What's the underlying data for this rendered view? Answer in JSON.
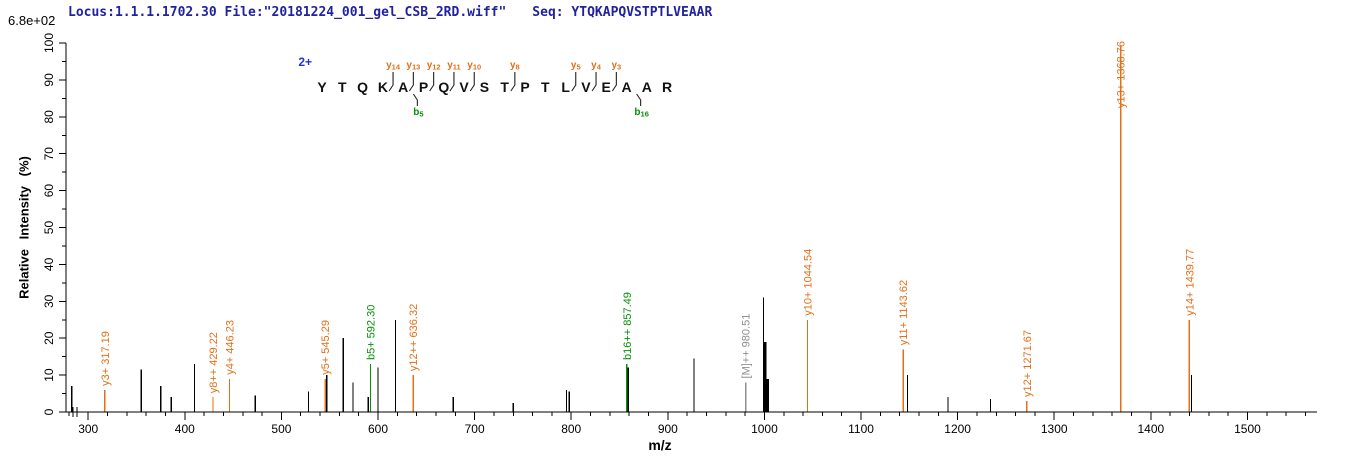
{
  "header": {
    "locus_file": "Locus:1.1.1.1702.30 File:\"20181224_001_gel_CSB_2RD.wiff\"",
    "seq": "Seq: YTQKAPQVSTPTLVEAAR"
  },
  "y_axis_scale": "6.8e+02",
  "colors": {
    "header_text": "#22229e",
    "charge_text": "#2233cc",
    "y_ion": "#e2701a",
    "b_ion": "#0a8f0a",
    "precursor": "#8f8f8f",
    "peak": "#000000",
    "axis": "#000000"
  },
  "chart_data": {
    "type": "bar",
    "subtype": "ms2-fragmentation-spectrum",
    "title": "",
    "xlabel": "m/z",
    "ylabel": "Relative Intensity (%)",
    "xlim": [
      277,
      1572
    ],
    "ylim": [
      0,
      100
    ],
    "x_major_ticks": [
      300,
      400,
      500,
      600,
      700,
      800,
      900,
      1000,
      1100,
      1200,
      1300,
      1400,
      1500
    ],
    "x_minor_tick_step": 20,
    "y_major_ticks": [
      0,
      10,
      20,
      30,
      40,
      50,
      60,
      70,
      80,
      90,
      100
    ],
    "y_minor_tick_step": 5,
    "legend_position": "none",
    "grid": false,
    "peptide": {
      "sequence": "YTQKAPQVSTPTLVEAAR",
      "charge": "2+",
      "y_ions": [
        {
          "name": "y14",
          "boundary": 4
        },
        {
          "name": "y13",
          "boundary": 5
        },
        {
          "name": "y12",
          "boundary": 6
        },
        {
          "name": "y11",
          "boundary": 7
        },
        {
          "name": "y10",
          "boundary": 8
        },
        {
          "name": "y8",
          "boundary": 10
        },
        {
          "name": "y5",
          "boundary": 13
        },
        {
          "name": "y4",
          "boundary": 14
        },
        {
          "name": "y3",
          "boundary": 15
        }
      ],
      "b_ions": [
        {
          "name": "b5",
          "boundary": 5
        },
        {
          "name": "b16",
          "boundary": 16
        }
      ]
    },
    "annotated_peaks": [
      {
        "label": "y3+ 317.19",
        "mz": 317.19,
        "intensity": 6,
        "type": "y"
      },
      {
        "label": "y8++ 429.22",
        "mz": 429.22,
        "intensity": 4,
        "type": "y"
      },
      {
        "label": "y4+ 446.23",
        "mz": 446.23,
        "intensity": 9,
        "type": "y"
      },
      {
        "label": "y5+ 545.29",
        "mz": 545.29,
        "intensity": 9,
        "type": "y"
      },
      {
        "label": "b5+ 592.30",
        "mz": 592.3,
        "intensity": 13,
        "type": "b"
      },
      {
        "label": "y12++ 636.32",
        "mz": 636.32,
        "intensity": 10,
        "type": "y"
      },
      {
        "label": "b16++ 857.49",
        "mz": 857.49,
        "intensity": 13,
        "type": "b"
      },
      {
        "label": "[M]++ 980.51",
        "mz": 980.51,
        "intensity": 8,
        "type": "precursor"
      },
      {
        "label": "y10+ 1044.54",
        "mz": 1044.54,
        "intensity": 25,
        "type": "y"
      },
      {
        "label": "y11+ 1143.62",
        "mz": 1143.62,
        "intensity": 17,
        "type": "y"
      },
      {
        "label": "y12+ 1271.67",
        "mz": 1271.67,
        "intensity": 3,
        "type": "y"
      },
      {
        "label": "y13+ 1368.76",
        "mz": 1368.76,
        "intensity": 99,
        "type": "y"
      },
      {
        "label": "y14+ 1439.77",
        "mz": 1439.77,
        "intensity": 25,
        "type": "y"
      }
    ],
    "unlabeled_peaks": [
      [
        283,
        7
      ],
      [
        355,
        11.5
      ],
      [
        375,
        7
      ],
      [
        386,
        4
      ],
      [
        410,
        13
      ],
      [
        473,
        4.5
      ],
      [
        528,
        5.5
      ],
      [
        547,
        10
      ],
      [
        564,
        20
      ],
      [
        574,
        8
      ],
      [
        590,
        4
      ],
      [
        600,
        12
      ],
      [
        618,
        25
      ],
      [
        678,
        4
      ],
      [
        740,
        2.5
      ],
      [
        795,
        6
      ],
      [
        798,
        5.5
      ],
      [
        859,
        12
      ],
      [
        927,
        14.5
      ],
      [
        999,
        31
      ],
      [
        1000.5,
        19,
        3
      ],
      [
        1002.5,
        9,
        4
      ],
      [
        1148,
        10
      ],
      [
        1190,
        4
      ],
      [
        1234,
        3.5
      ],
      [
        1442,
        10
      ]
    ]
  }
}
